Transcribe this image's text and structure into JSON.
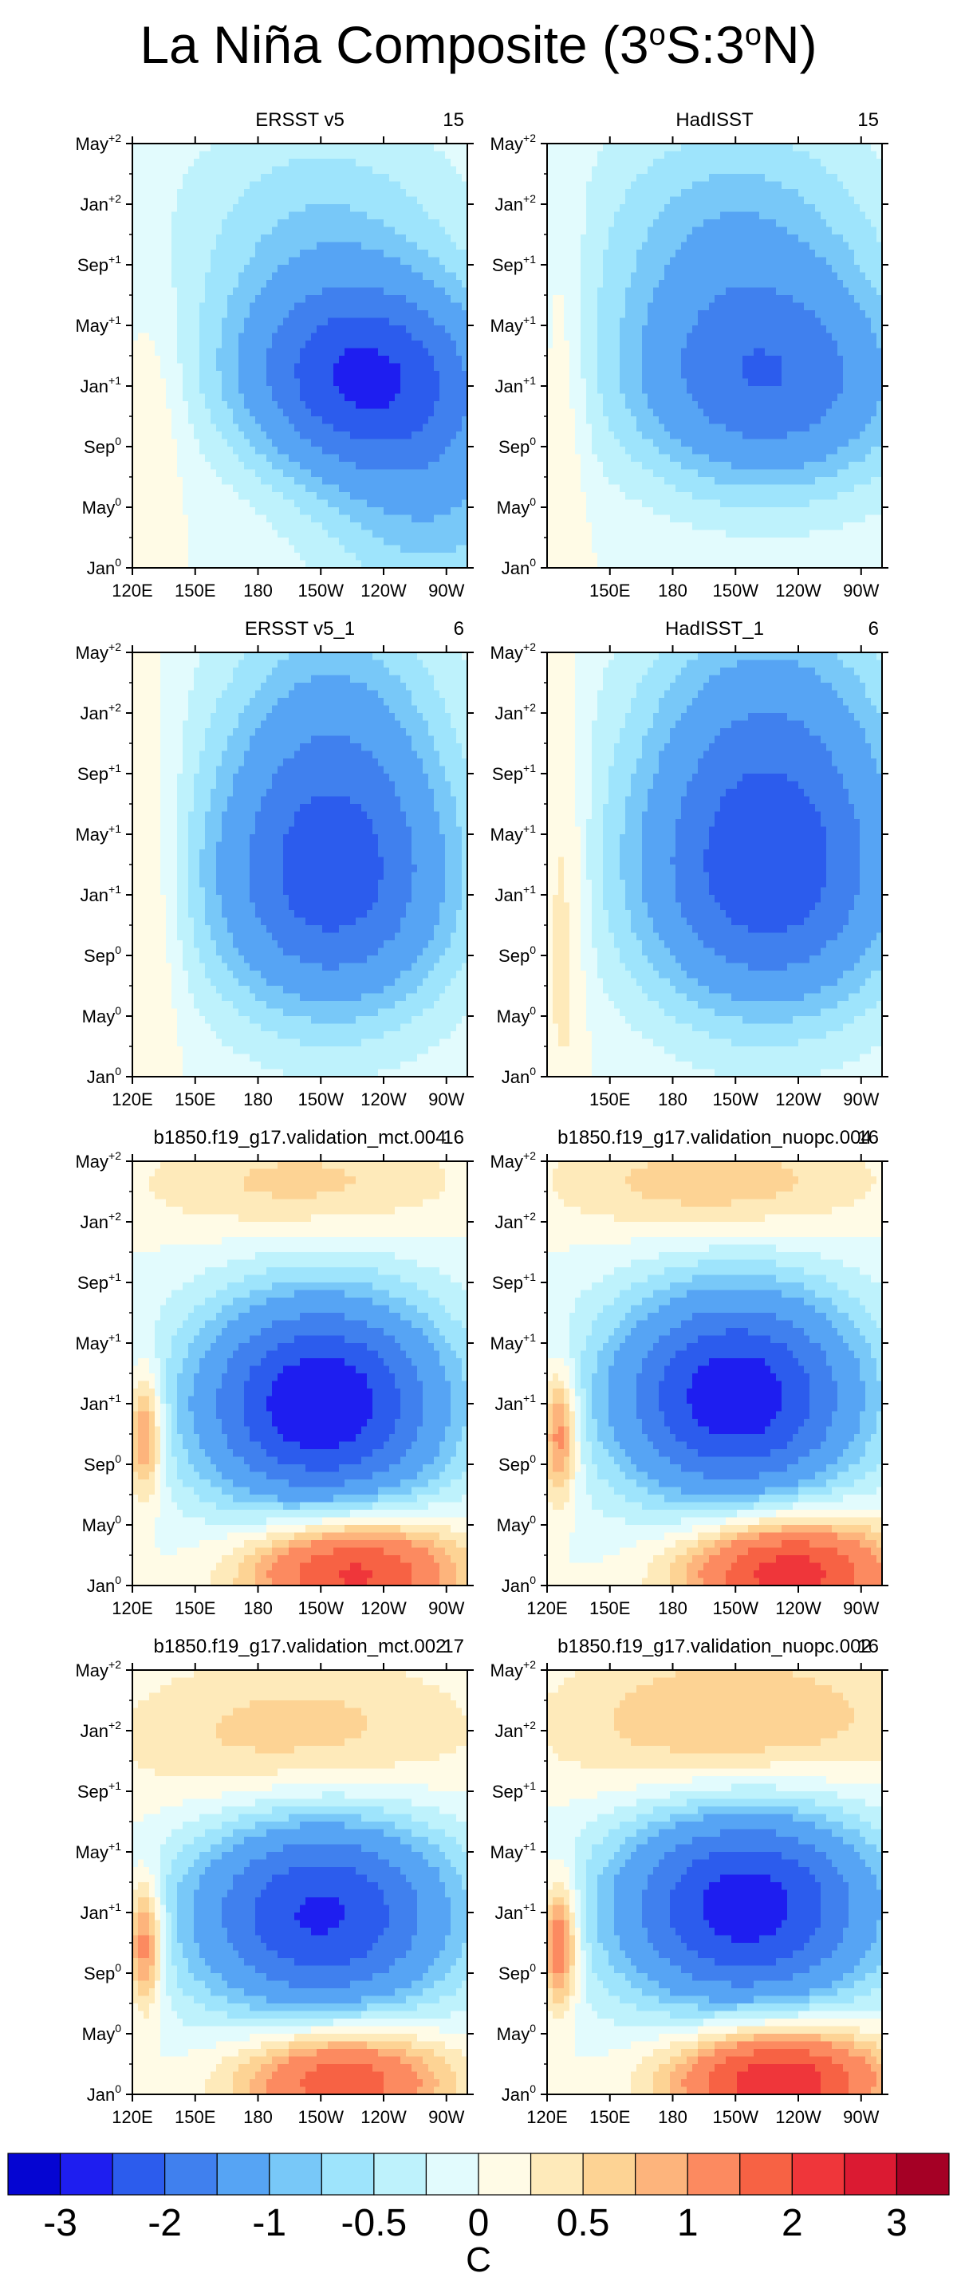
{
  "title": {
    "main": "La Niña Composite (3",
    "sup1": "o",
    "mid": "S:3",
    "sup2": "o",
    "end": "N)"
  },
  "colors": {
    "contour_line": "#6e6e6e",
    "levels": [
      "#0505d2",
      "#1e1ef0",
      "#2c5ced",
      "#4080ee",
      "#56a4f4",
      "#78c8f8",
      "#9ee4fc",
      "#bef2fc",
      "#e2fbfd",
      "#fffbe6",
      "#feeaba",
      "#fdd394",
      "#fdb47c",
      "#fc8a60",
      "#f76244",
      "#ef363a",
      "#db1a32",
      "#a50025"
    ]
  },
  "colorbar": {
    "labels": [
      "-3",
      "-2",
      "-1",
      "-0.5",
      "0",
      "0.5",
      "1",
      "2",
      "3"
    ],
    "unit": "C"
  },
  "chart_data": {
    "type": "heatmap",
    "description_levels": [
      -3,
      -2.5,
      -2,
      -1.5,
      -1,
      -0.75,
      -0.5,
      -0.25,
      0,
      0.25,
      0.5,
      0.75,
      1,
      1.5,
      2,
      2.5,
      3
    ],
    "x_ticks": [
      "120E",
      "150E",
      "180",
      "150W",
      "120W",
      "90W"
    ],
    "x_ticks_no120": [
      "150E",
      "180",
      "150W",
      "120W",
      "90W"
    ],
    "x_values": [
      120,
      150,
      180,
      210,
      240,
      270
    ],
    "xlim": [
      120,
      280
    ],
    "y_ticks": [
      {
        "m": "Jan",
        "s": "0"
      },
      {
        "m": "May",
        "s": "0"
      },
      {
        "m": "Sep",
        "s": "0"
      },
      {
        "m": "Jan",
        "s": "+1"
      },
      {
        "m": "May",
        "s": "+1"
      },
      {
        "m": "Sep",
        "s": "+1"
      },
      {
        "m": "Jan",
        "s": "+2"
      },
      {
        "m": "May",
        "s": "+2"
      }
    ],
    "ylim_months": [
      0,
      28
    ],
    "panels": [
      {
        "title": "ERSST v5",
        "count": "15",
        "centers": [
          {
            "x": 230,
            "y": 12.5,
            "v": -2.3,
            "sx": 42,
            "sy": 4.5
          },
          {
            "x": 265,
            "y": 4,
            "v": -0.8,
            "sx": 40,
            "sy": 6
          },
          {
            "x": 210,
            "y": 22,
            "v": -0.7,
            "sx": 50,
            "sy": 6
          },
          {
            "x": 130,
            "y": 10,
            "v": 0.3,
            "sx": 10,
            "sy": 6
          }
        ]
      },
      {
        "title": "HadISST",
        "count": "15",
        "centers": [
          {
            "x": 225,
            "y": 12,
            "v": -1.8,
            "sx": 48,
            "sy": 5
          },
          {
            "x": 210,
            "y": 22,
            "v": -0.9,
            "sx": 50,
            "sy": 6
          },
          {
            "x": 128,
            "y": 12,
            "v": 0.35,
            "sx": 8,
            "sy": 10
          }
        ]
      },
      {
        "title": "ERSST v5_1",
        "count": "6",
        "centers": [
          {
            "x": 215,
            "y": 12,
            "v": -1.9,
            "sx": 42,
            "sy": 6
          },
          {
            "x": 215,
            "y": 22,
            "v": -1.1,
            "sx": 40,
            "sy": 7
          },
          {
            "x": 130,
            "y": 12,
            "v": 0.4,
            "sx": 10,
            "sy": 10
          }
        ]
      },
      {
        "title": "HadISST_1",
        "count": "6",
        "centers": [
          {
            "x": 225,
            "y": 12,
            "v": -1.9,
            "sx": 45,
            "sy": 6
          },
          {
            "x": 225,
            "y": 22,
            "v": -1.3,
            "sx": 45,
            "sy": 7
          },
          {
            "x": 128,
            "y": 12,
            "v": 0.5,
            "sx": 8,
            "sy": 10
          }
        ]
      },
      {
        "title": "b1850.f19_g17.validation_mct.004",
        "count": "16",
        "centers": [
          {
            "x": 210,
            "y": 12,
            "v": -3.0,
            "sx": 42,
            "sy": 5
          },
          {
            "x": 225,
            "y": 1,
            "v": 2.3,
            "sx": 35,
            "sy": 2.5
          },
          {
            "x": 200,
            "y": 26.5,
            "v": 0.6,
            "sx": 55,
            "sy": 2.5
          },
          {
            "x": 126,
            "y": 10,
            "v": 1.3,
            "sx": 6,
            "sy": 3
          }
        ]
      },
      {
        "title": "b1850.f19_g17.validation_nuopc.004",
        "count": "16",
        "centers": [
          {
            "x": 210,
            "y": 12.5,
            "v": -2.9,
            "sx": 42,
            "sy": 5
          },
          {
            "x": 235,
            "y": 1,
            "v": 2.4,
            "sx": 35,
            "sy": 2.5
          },
          {
            "x": 200,
            "y": 26.5,
            "v": 0.7,
            "sx": 55,
            "sy": 2.5
          },
          {
            "x": 126,
            "y": 10,
            "v": 1.4,
            "sx": 6,
            "sy": 3
          }
        ]
      },
      {
        "title": "b1850.f19_g17.validation_mct.002",
        "count": "17",
        "centers": [
          {
            "x": 210,
            "y": 12,
            "v": -2.6,
            "sx": 45,
            "sy": 5
          },
          {
            "x": 220,
            "y": 1,
            "v": 2.0,
            "sx": 35,
            "sy": 2.5
          },
          {
            "x": 200,
            "y": 23,
            "v": 0.75,
            "sx": 60,
            "sy": 4
          },
          {
            "x": 126,
            "y": 10,
            "v": 1.5,
            "sx": 6,
            "sy": 3
          }
        ]
      },
      {
        "title": "b1850.f19_g17.validation_nuopc.002",
        "count": "16",
        "centers": [
          {
            "x": 215,
            "y": 12.5,
            "v": -2.8,
            "sx": 45,
            "sy": 5
          },
          {
            "x": 230,
            "y": 1,
            "v": 2.6,
            "sx": 35,
            "sy": 2.5
          },
          {
            "x": 210,
            "y": 24,
            "v": 0.9,
            "sx": 60,
            "sy": 4
          },
          {
            "x": 126,
            "y": 10,
            "v": 1.6,
            "sx": 6,
            "sy": 3
          }
        ]
      }
    ]
  }
}
